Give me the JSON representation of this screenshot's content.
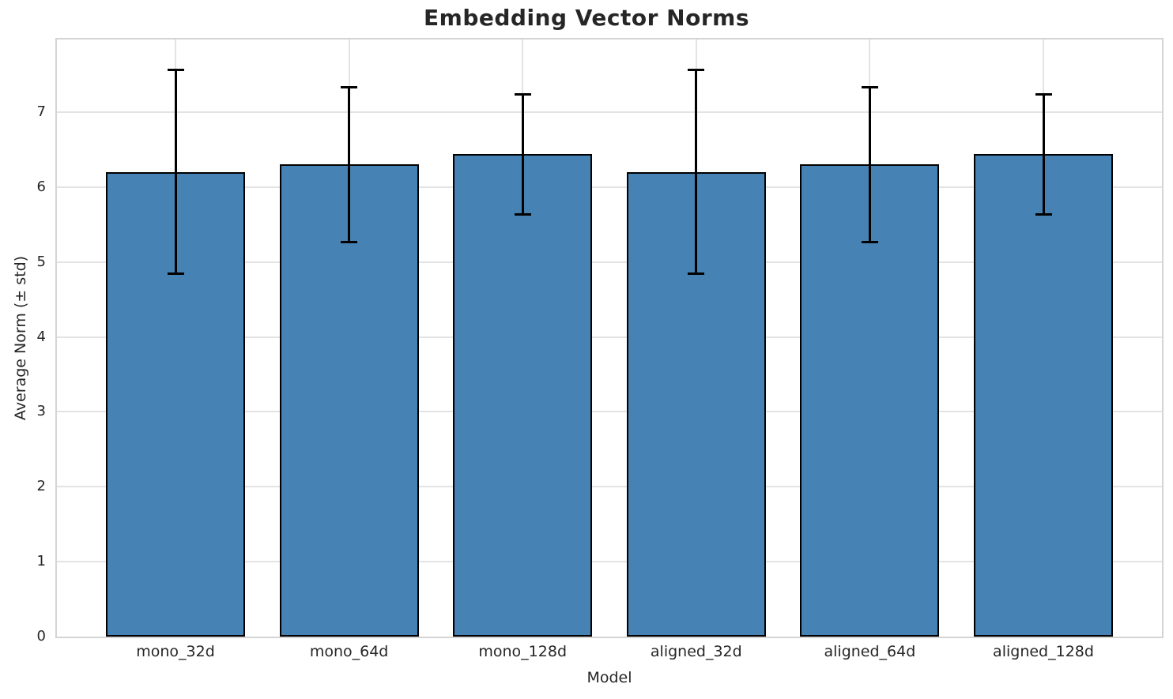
{
  "chart_data": {
    "type": "bar",
    "title": "Embedding Vector Norms",
    "xlabel": "Model",
    "ylabel": "Average Norm (± std)",
    "categories": [
      "mono_32d",
      "mono_64d",
      "mono_128d",
      "aligned_32d",
      "aligned_64d",
      "aligned_128d"
    ],
    "values": [
      6.2,
      6.3,
      6.44,
      6.2,
      6.3,
      6.44
    ],
    "error_std": [
      1.36,
      1.03,
      0.8,
      1.36,
      1.03,
      0.8
    ],
    "yticks": [
      0,
      1,
      2,
      3,
      4,
      5,
      6,
      7
    ],
    "ylim": [
      0,
      7.97
    ],
    "grid": true,
    "legend": "none",
    "colors": {
      "bar_fill": "#4682b4",
      "bar_edge": "#000000",
      "error_bar": "#000000",
      "grid_line": "#e3e3e3",
      "spine": "#d4d4d4",
      "text": "#262626",
      "background": "#ffffff"
    }
  }
}
